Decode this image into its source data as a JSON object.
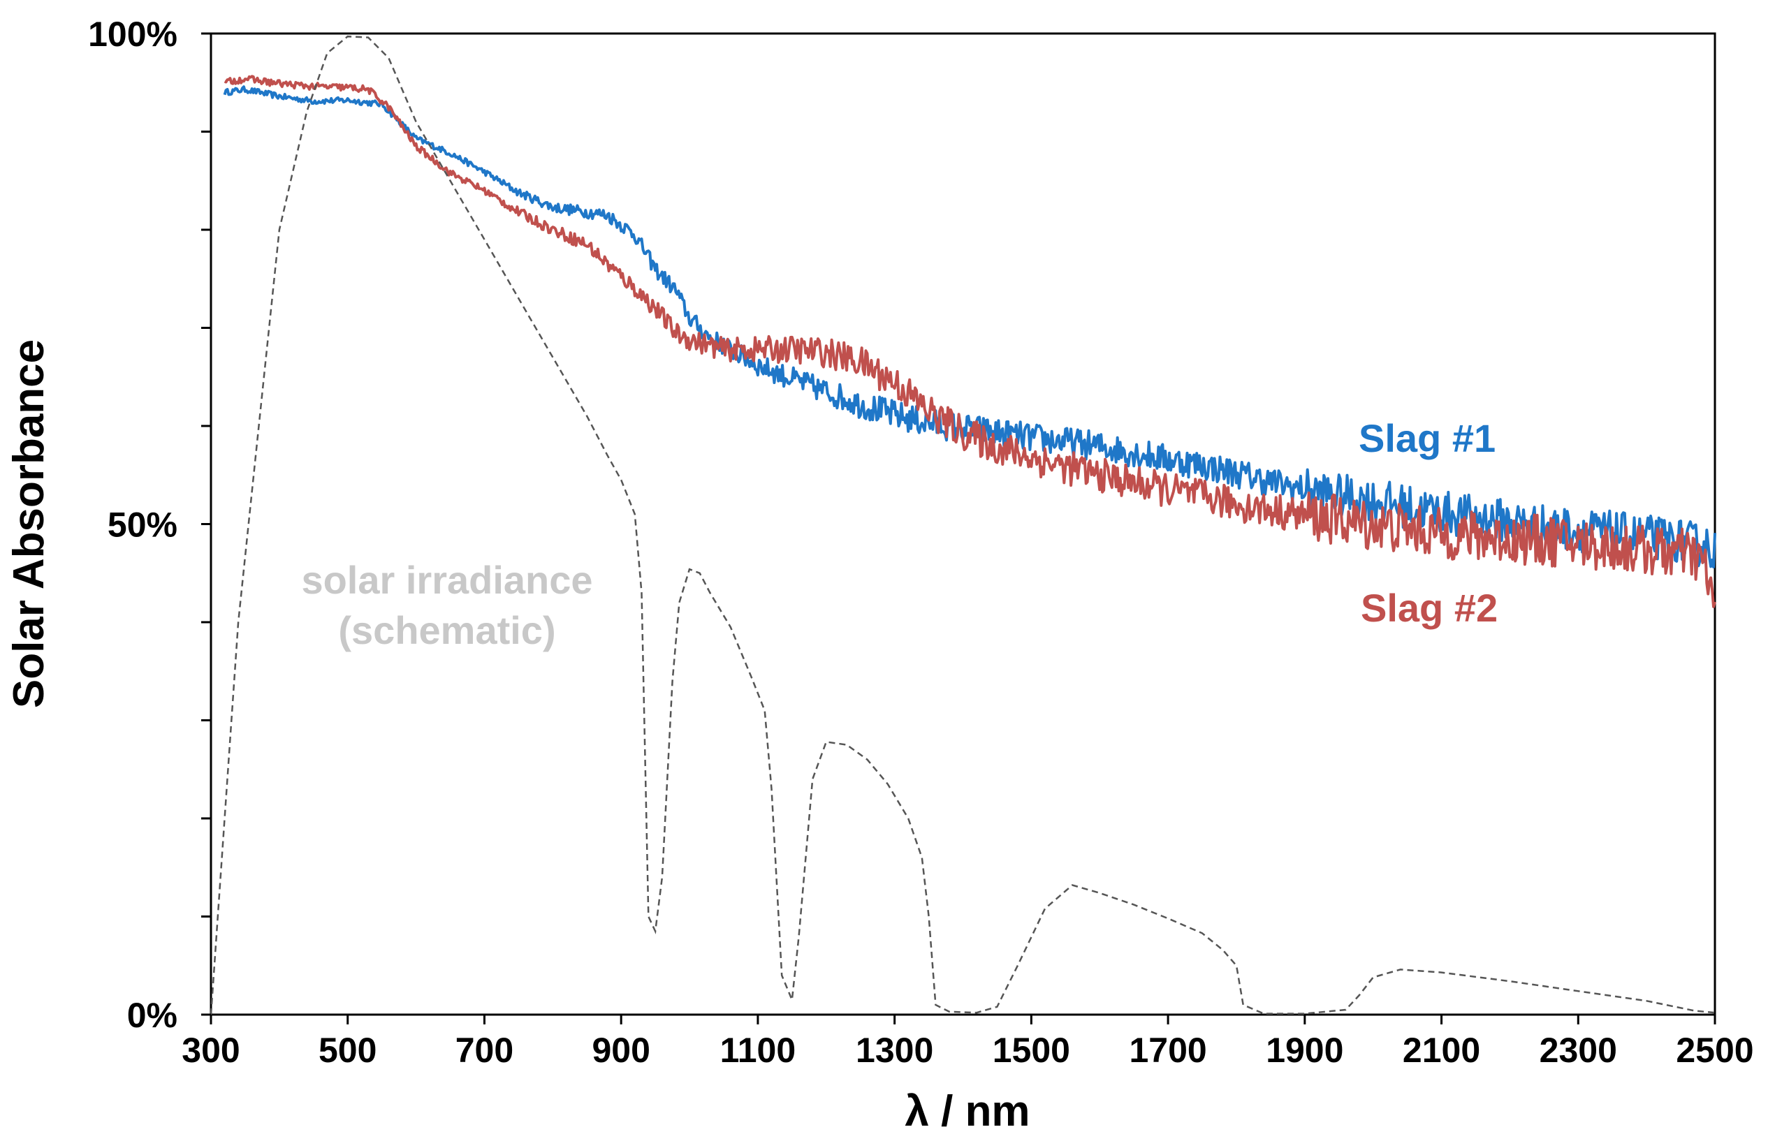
{
  "chart_data": {
    "type": "line",
    "title": "",
    "xlabel": "λ / nm",
    "ylabel": "Solar Absorbance",
    "xlim": [
      300,
      2500
    ],
    "ylim": [
      0,
      100
    ],
    "x_ticks": [
      300,
      500,
      700,
      900,
      1100,
      1300,
      1500,
      1700,
      1900,
      2100,
      2300,
      2500
    ],
    "x_tick_labels": [
      "300",
      "500",
      "700",
      "900",
      "1100",
      "1300",
      "1500",
      "1700",
      "1900",
      "2100",
      "2300",
      "2500"
    ],
    "y_ticks": [
      0,
      50,
      100
    ],
    "y_tick_labels": [
      "0%",
      "50%",
      "100%"
    ],
    "grid": false,
    "series": [
      {
        "name": "Slag #1",
        "color": "#1f77c8",
        "noise": 1.2,
        "points": [
          [
            320,
            94.0
          ],
          [
            350,
            94.3
          ],
          [
            400,
            93.6
          ],
          [
            450,
            93.1
          ],
          [
            500,
            93.2
          ],
          [
            550,
            92.8
          ],
          [
            600,
            89.3
          ],
          [
            650,
            87.8
          ],
          [
            700,
            85.9
          ],
          [
            750,
            83.8
          ],
          [
            800,
            82.3
          ],
          [
            850,
            81.8
          ],
          [
            880,
            81.5
          ],
          [
            920,
            79.5
          ],
          [
            950,
            76.0
          ],
          [
            980,
            73.8
          ],
          [
            1000,
            71.0
          ],
          [
            1030,
            69.0
          ],
          [
            1100,
            66.2
          ],
          [
            1150,
            64.8
          ],
          [
            1200,
            63.5
          ],
          [
            1250,
            62.2
          ],
          [
            1300,
            61.1
          ],
          [
            1350,
            60.3
          ],
          [
            1400,
            59.8
          ],
          [
            1450,
            59.3
          ],
          [
            1500,
            58.8
          ],
          [
            1550,
            58.4
          ],
          [
            1600,
            57.9
          ],
          [
            1650,
            57.3
          ],
          [
            1700,
            56.6
          ],
          [
            1750,
            56.0
          ],
          [
            1800,
            55.2
          ],
          [
            1850,
            54.3
          ],
          [
            1900,
            53.5
          ],
          [
            1950,
            52.9
          ],
          [
            2000,
            52.4
          ],
          [
            2050,
            51.8
          ],
          [
            2100,
            51.2
          ],
          [
            2150,
            50.7
          ],
          [
            2200,
            50.3
          ],
          [
            2250,
            49.8
          ],
          [
            2300,
            49.4
          ],
          [
            2350,
            49.1
          ],
          [
            2400,
            48.7
          ],
          [
            2450,
            48.3
          ],
          [
            2500,
            47.5
          ]
        ]
      },
      {
        "name": "Slag #2",
        "color": "#c0504d",
        "noise": 1.4,
        "points": [
          [
            320,
            95.0
          ],
          [
            350,
            95.4
          ],
          [
            400,
            94.9
          ],
          [
            450,
            94.6
          ],
          [
            500,
            94.5
          ],
          [
            530,
            94.3
          ],
          [
            560,
            92.5
          ],
          [
            600,
            88.5
          ],
          [
            650,
            85.8
          ],
          [
            700,
            84.0
          ],
          [
            750,
            81.8
          ],
          [
            800,
            80.0
          ],
          [
            850,
            78.5
          ],
          [
            880,
            76.5
          ],
          [
            920,
            74.0
          ],
          [
            950,
            72.0
          ],
          [
            980,
            69.5
          ],
          [
            1000,
            68.8
          ],
          [
            1050,
            67.8
          ],
          [
            1100,
            67.8
          ],
          [
            1150,
            67.8
          ],
          [
            1200,
            67.5
          ],
          [
            1250,
            66.5
          ],
          [
            1300,
            64.5
          ],
          [
            1350,
            61.5
          ],
          [
            1400,
            59.3
          ],
          [
            1450,
            57.8
          ],
          [
            1500,
            56.8
          ],
          [
            1550,
            55.8
          ],
          [
            1600,
            55.0
          ],
          [
            1650,
            54.2
          ],
          [
            1700,
            53.5
          ],
          [
            1750,
            52.8
          ],
          [
            1800,
            52.0
          ],
          [
            1850,
            51.4
          ],
          [
            1900,
            50.9
          ],
          [
            1950,
            50.4
          ],
          [
            2000,
            49.9
          ],
          [
            2050,
            49.5
          ],
          [
            2100,
            49.0
          ],
          [
            2150,
            48.7
          ],
          [
            2200,
            48.5
          ],
          [
            2250,
            48.3
          ],
          [
            2300,
            48.0
          ],
          [
            2350,
            47.7
          ],
          [
            2400,
            47.3
          ],
          [
            2450,
            47.0
          ],
          [
            2480,
            46.5
          ],
          [
            2500,
            42.0
          ]
        ]
      },
      {
        "name": "solar irradiance (schematic)",
        "color": "#555555",
        "dashed": true,
        "points": [
          [
            300,
            0
          ],
          [
            340,
            40
          ],
          [
            400,
            80
          ],
          [
            440,
            92
          ],
          [
            470,
            98
          ],
          [
            500,
            99.7
          ],
          [
            530,
            99.6
          ],
          [
            560,
            97.5
          ],
          [
            600,
            91
          ],
          [
            650,
            85
          ],
          [
            700,
            79
          ],
          [
            750,
            73
          ],
          [
            800,
            67
          ],
          [
            850,
            61
          ],
          [
            880,
            57
          ],
          [
            900,
            54.5
          ],
          [
            920,
            51
          ],
          [
            930,
            43
          ],
          [
            940,
            10
          ],
          [
            950,
            8.5
          ],
          [
            960,
            14
          ],
          [
            975,
            34
          ],
          [
            985,
            42
          ],
          [
            1000,
            45.4
          ],
          [
            1015,
            45
          ],
          [
            1030,
            43
          ],
          [
            1060,
            39.5
          ],
          [
            1090,
            34.5
          ],
          [
            1110,
            31
          ],
          [
            1120,
            23
          ],
          [
            1135,
            4
          ],
          [
            1150,
            1.5
          ],
          [
            1160,
            8
          ],
          [
            1180,
            24
          ],
          [
            1200,
            27.8
          ],
          [
            1230,
            27.5
          ],
          [
            1260,
            26
          ],
          [
            1290,
            23.5
          ],
          [
            1320,
            20
          ],
          [
            1340,
            16
          ],
          [
            1350,
            10
          ],
          [
            1360,
            1
          ],
          [
            1380,
            0.3
          ],
          [
            1420,
            0.2
          ],
          [
            1450,
            0.8
          ],
          [
            1480,
            5
          ],
          [
            1520,
            10.8
          ],
          [
            1560,
            13.2
          ],
          [
            1600,
            12.4
          ],
          [
            1650,
            11.2
          ],
          [
            1700,
            9.8
          ],
          [
            1750,
            8.3
          ],
          [
            1780,
            6.6
          ],
          [
            1800,
            5
          ],
          [
            1810,
            1
          ],
          [
            1840,
            0.1
          ],
          [
            1900,
            0.1
          ],
          [
            1960,
            0.5
          ],
          [
            1980,
            2
          ],
          [
            2000,
            3.8
          ],
          [
            2040,
            4.6
          ],
          [
            2100,
            4.3
          ],
          [
            2200,
            3.4
          ],
          [
            2300,
            2.4
          ],
          [
            2400,
            1.4
          ],
          [
            2470,
            0.4
          ],
          [
            2500,
            0.2
          ]
        ]
      }
    ],
    "legend_labels": {
      "slag1": "Slag #1",
      "slag2": "Slag #2"
    },
    "annotation": {
      "line1": "solar irradiance",
      "line2": "(schematic)"
    },
    "colors": {
      "slag1": "#1f77c8",
      "slag2": "#c0504d",
      "annotation": "#c8c8c8",
      "irradiance": "#555555"
    }
  }
}
